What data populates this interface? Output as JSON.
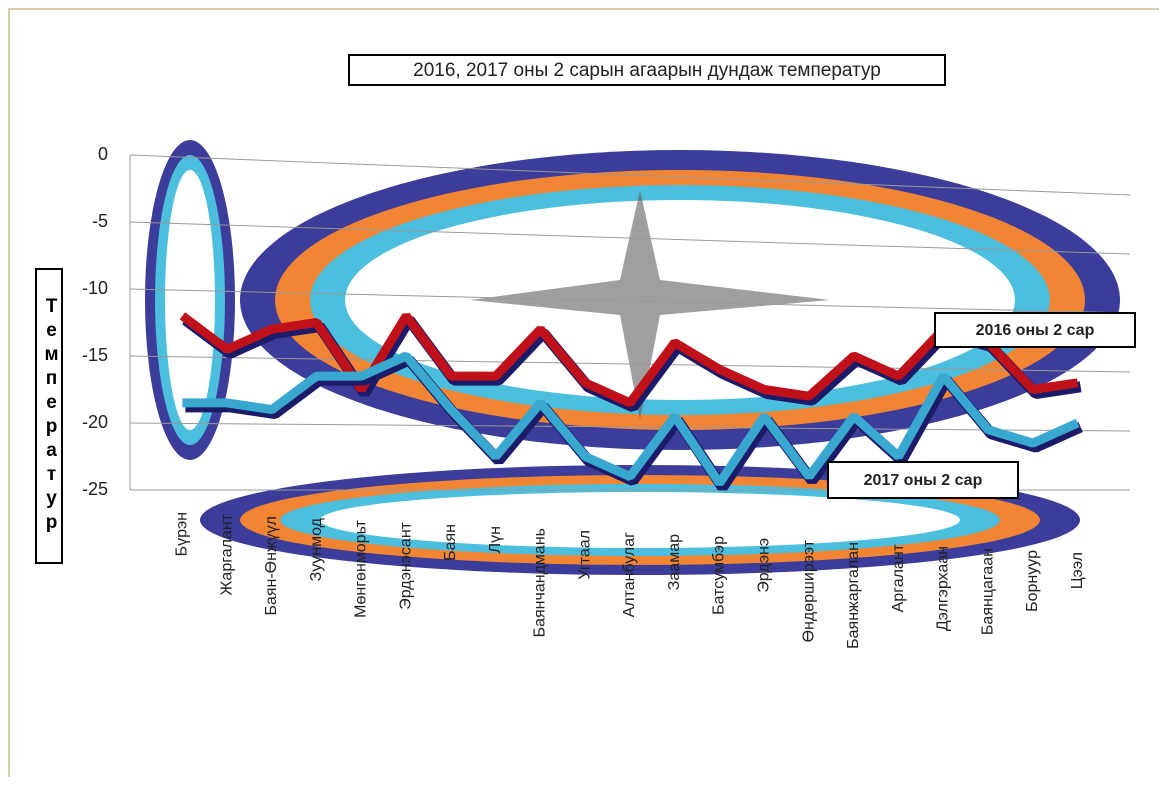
{
  "chart_data": {
    "type": "line",
    "title": "2016, 2017 оны 2 сарын агаарын дундаж температур",
    "y_label": "Температур",
    "categories": [
      "Бүрэн",
      "Жаргалант",
      "Баян-Өнжүүл",
      "Зуунмод",
      "Мөнгөнморьт",
      "Эрдэнэсант",
      "Баян",
      "Лүн",
      "Баянчандмань",
      "Угтаал",
      "Алтанбулаг",
      "Заамар",
      "Батсумбэр",
      "Эрдэнэ",
      "Өндөрширээт",
      "Баянжаргалан",
      "Аргалант",
      "Дэлгэрхаан",
      "Баянцагаан",
      "Борнуур",
      "Цээл"
    ],
    "series": [
      {
        "name": "2016 оны 2 сар",
        "color": "#c0101a",
        "values": [
          -12,
          -14.5,
          -13,
          -12.5,
          -17.5,
          -12,
          -16.5,
          -16.5,
          -13,
          -17,
          -18.5,
          -14,
          -16,
          -17.5,
          -18,
          -15,
          -16.5,
          -13,
          -14,
          -17.5,
          -17
        ]
      },
      {
        "name": "2017 оны 2 сар",
        "color": "#39a8d0",
        "values": [
          -18.5,
          -18.5,
          -19,
          -16.5,
          -16.5,
          -15,
          -19,
          -22.5,
          -18.5,
          -22.5,
          -24,
          -19.5,
          -24.5,
          -19.5,
          -24,
          -19.5,
          -22.5,
          -16.5,
          -20.5,
          -21.5,
          -20
        ]
      }
    ],
    "ylim": [
      -25,
      0
    ],
    "yticks": [
      0,
      -5,
      -10,
      -15,
      -20,
      -25
    ],
    "grid": true
  }
}
